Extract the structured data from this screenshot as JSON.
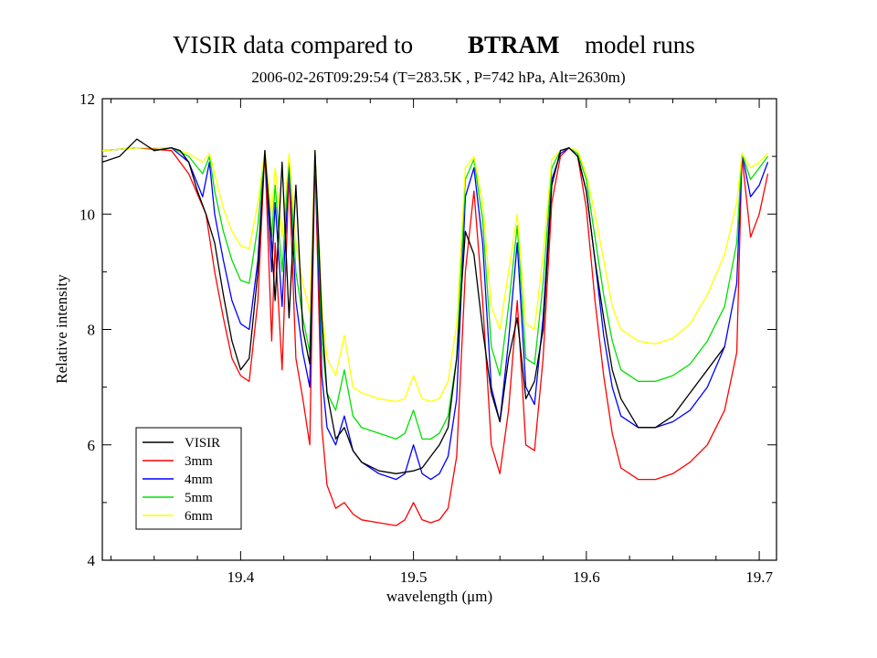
{
  "chart_data": {
    "type": "line",
    "title_prefix": "VISIR data compared to",
    "title_highlight": "BTRAM",
    "title_suffix": "model runs",
    "subtitle": "2006-02-26T09:29:54 (T=283.5K , P=742 hPa, Alt=2630m)",
    "xlabel": "wavelength (μm)",
    "ylabel": "Relative intensity",
    "xlim": [
      19.32,
      19.71
    ],
    "ylim": [
      4,
      12
    ],
    "xticks": [
      19.4,
      19.5,
      19.6,
      19.7
    ],
    "yticks": [
      4,
      6,
      8,
      10,
      12
    ],
    "grid": false,
    "legend_position": "bottom-left",
    "colors": {
      "title_highlight": "#555555",
      "axis": "#000000"
    },
    "series": [
      {
        "name": "VISIR",
        "color": "#000000",
        "x": [
          19.32,
          19.33,
          19.34,
          19.345,
          19.35,
          19.36,
          19.365,
          19.37,
          19.375,
          19.38,
          19.385,
          19.39,
          19.395,
          19.4,
          19.405,
          19.41,
          19.414,
          19.418,
          19.42,
          19.424,
          19.428,
          19.432,
          19.436,
          19.44,
          19.443,
          19.447,
          19.45,
          19.455,
          19.46,
          19.465,
          19.47,
          19.48,
          19.49,
          19.5,
          19.505,
          19.51,
          19.515,
          19.52,
          19.525,
          19.53,
          19.535,
          19.54,
          19.545,
          19.55,
          19.555,
          19.56,
          19.565,
          19.57,
          19.575,
          19.58,
          19.585,
          19.59,
          19.595,
          19.6,
          19.605,
          19.61,
          19.615,
          19.62,
          19.63,
          19.64,
          19.65,
          19.66,
          19.67,
          19.68
        ],
        "y": [
          10.9,
          11.0,
          11.3,
          11.2,
          11.1,
          11.15,
          11.1,
          10.9,
          10.4,
          10.0,
          9.5,
          8.6,
          7.8,
          7.3,
          7.5,
          9.0,
          11.1,
          9.5,
          8.5,
          10.9,
          8.2,
          10.5,
          8.0,
          7.4,
          11.1,
          8.2,
          6.9,
          6.1,
          6.3,
          5.9,
          5.7,
          5.55,
          5.5,
          5.55,
          5.6,
          5.8,
          6.0,
          6.3,
          7.5,
          9.7,
          9.3,
          8.0,
          6.9,
          6.4,
          7.5,
          8.2,
          6.8,
          7.1,
          8.0,
          10.5,
          11.1,
          11.15,
          11.0,
          10.4,
          9.2,
          8.2,
          7.3,
          6.8,
          6.3,
          6.3,
          6.5,
          6.9,
          7.3,
          7.7
        ]
      },
      {
        "name": "3mm",
        "color": "#ff0000",
        "x": [
          19.32,
          19.34,
          19.36,
          19.37,
          19.38,
          19.385,
          19.39,
          19.395,
          19.4,
          19.405,
          19.41,
          19.414,
          19.418,
          19.42,
          19.424,
          19.428,
          19.432,
          19.436,
          19.44,
          19.443,
          19.447,
          19.45,
          19.455,
          19.46,
          19.465,
          19.47,
          19.48,
          19.49,
          19.495,
          19.5,
          19.505,
          19.51,
          19.515,
          19.52,
          19.525,
          19.53,
          19.535,
          19.54,
          19.545,
          19.55,
          19.555,
          19.56,
          19.565,
          19.57,
          19.575,
          19.58,
          19.585,
          19.59,
          19.595,
          19.6,
          19.605,
          19.61,
          19.615,
          19.62,
          19.63,
          19.64,
          19.65,
          19.66,
          19.67,
          19.68,
          19.687,
          19.69,
          19.695,
          19.7,
          19.705
        ],
        "y": [
          11.1,
          11.15,
          11.1,
          10.7,
          10.0,
          9.0,
          8.2,
          7.5,
          7.2,
          7.1,
          8.5,
          11.1,
          7.8,
          9.5,
          7.3,
          10.7,
          7.5,
          6.8,
          6.0,
          11.0,
          6.3,
          5.3,
          4.9,
          5.0,
          4.8,
          4.7,
          4.65,
          4.6,
          4.7,
          5.0,
          4.7,
          4.65,
          4.7,
          4.9,
          5.8,
          9.0,
          10.4,
          8.5,
          6.0,
          5.5,
          6.6,
          8.5,
          6.0,
          5.9,
          7.5,
          10.2,
          11.0,
          11.15,
          11.0,
          10.1,
          8.5,
          7.2,
          6.2,
          5.6,
          5.4,
          5.4,
          5.5,
          5.7,
          6.0,
          6.6,
          7.6,
          11.0,
          9.6,
          10.0,
          10.7
        ]
      },
      {
        "name": "4mm",
        "color": "#0000ff",
        "x": [
          19.32,
          19.34,
          19.36,
          19.37,
          19.378,
          19.382,
          19.385,
          19.39,
          19.395,
          19.4,
          19.405,
          19.41,
          19.414,
          19.418,
          19.42,
          19.424,
          19.428,
          19.432,
          19.436,
          19.44,
          19.443,
          19.447,
          19.45,
          19.455,
          19.46,
          19.465,
          19.47,
          19.48,
          19.49,
          19.495,
          19.5,
          19.505,
          19.51,
          19.515,
          19.52,
          19.525,
          19.53,
          19.535,
          19.54,
          19.545,
          19.55,
          19.555,
          19.56,
          19.565,
          19.57,
          19.575,
          19.58,
          19.585,
          19.59,
          19.595,
          19.6,
          19.605,
          19.61,
          19.615,
          19.62,
          19.63,
          19.64,
          19.65,
          19.66,
          19.67,
          19.68,
          19.687,
          19.69,
          19.695,
          19.7,
          19.705
        ],
        "y": [
          11.1,
          11.15,
          11.15,
          10.9,
          10.3,
          10.9,
          10.0,
          9.2,
          8.5,
          8.1,
          8.0,
          9.2,
          11.1,
          9.0,
          10.2,
          8.4,
          10.9,
          8.5,
          7.6,
          7.0,
          11.05,
          7.2,
          6.3,
          6.0,
          6.5,
          5.9,
          5.7,
          5.5,
          5.4,
          5.5,
          6.0,
          5.5,
          5.4,
          5.5,
          5.8,
          6.8,
          10.3,
          10.8,
          9.5,
          7.0,
          6.4,
          7.8,
          9.5,
          7.0,
          6.7,
          8.2,
          10.6,
          11.05,
          11.15,
          11.0,
          10.4,
          9.2,
          7.9,
          7.0,
          6.5,
          6.3,
          6.3,
          6.4,
          6.6,
          7.0,
          7.7,
          8.8,
          11.05,
          10.3,
          10.5,
          10.9
        ]
      },
      {
        "name": "5mm",
        "color": "#00e000",
        "x": [
          19.32,
          19.34,
          19.36,
          19.37,
          19.378,
          19.382,
          19.385,
          19.39,
          19.395,
          19.4,
          19.405,
          19.41,
          19.414,
          19.418,
          19.42,
          19.424,
          19.428,
          19.432,
          19.436,
          19.44,
          19.443,
          19.447,
          19.45,
          19.455,
          19.46,
          19.465,
          19.47,
          19.48,
          19.49,
          19.495,
          19.5,
          19.505,
          19.51,
          19.515,
          19.52,
          19.525,
          19.53,
          19.535,
          19.54,
          19.545,
          19.55,
          19.555,
          19.56,
          19.565,
          19.57,
          19.575,
          19.58,
          19.585,
          19.59,
          19.595,
          19.6,
          19.605,
          19.61,
          19.615,
          19.62,
          19.63,
          19.64,
          19.65,
          19.66,
          19.67,
          19.68,
          19.687,
          19.69,
          19.695,
          19.7,
          19.705
        ],
        "y": [
          11.1,
          11.15,
          11.15,
          11.0,
          10.7,
          11.0,
          10.4,
          9.7,
          9.2,
          8.85,
          8.8,
          9.8,
          11.1,
          9.6,
          10.5,
          9.0,
          11.0,
          9.0,
          8.2,
          7.6,
          11.1,
          7.8,
          6.9,
          6.6,
          7.3,
          6.5,
          6.3,
          6.2,
          6.1,
          6.2,
          6.6,
          6.1,
          6.1,
          6.2,
          6.5,
          7.5,
          10.6,
          10.95,
          9.9,
          7.7,
          7.2,
          8.4,
          9.8,
          7.5,
          7.4,
          8.8,
          10.8,
          11.1,
          11.15,
          11.05,
          10.6,
          9.6,
          8.6,
          7.8,
          7.3,
          7.1,
          7.1,
          7.2,
          7.4,
          7.8,
          8.4,
          9.5,
          11.05,
          10.6,
          10.8,
          11.0
        ]
      },
      {
        "name": "6mm",
        "color": "#ffff00",
        "x": [
          19.32,
          19.34,
          19.36,
          19.37,
          19.378,
          19.382,
          19.385,
          19.39,
          19.395,
          19.4,
          19.405,
          19.41,
          19.414,
          19.418,
          19.42,
          19.424,
          19.428,
          19.432,
          19.436,
          19.44,
          19.443,
          19.447,
          19.45,
          19.455,
          19.46,
          19.465,
          19.47,
          19.48,
          19.49,
          19.495,
          19.5,
          19.505,
          19.51,
          19.515,
          19.52,
          19.525,
          19.53,
          19.535,
          19.54,
          19.545,
          19.55,
          19.555,
          19.56,
          19.565,
          19.57,
          19.575,
          19.58,
          19.585,
          19.59,
          19.595,
          19.6,
          19.605,
          19.61,
          19.615,
          19.62,
          19.63,
          19.64,
          19.65,
          19.66,
          19.67,
          19.68,
          19.687,
          19.69,
          19.695,
          19.7,
          19.705
        ],
        "y": [
          11.1,
          11.15,
          11.15,
          11.05,
          10.9,
          11.05,
          10.7,
          10.1,
          9.7,
          9.45,
          9.4,
          10.2,
          11.1,
          10.0,
          10.8,
          9.6,
          11.05,
          9.5,
          8.8,
          8.3,
          11.1,
          8.4,
          7.5,
          7.2,
          7.9,
          7.0,
          6.9,
          6.8,
          6.75,
          6.8,
          7.2,
          6.8,
          6.75,
          6.8,
          7.1,
          8.1,
          10.8,
          11.0,
          10.2,
          8.4,
          8.0,
          9.0,
          10.0,
          8.1,
          8.0,
          9.3,
          10.95,
          11.1,
          11.15,
          11.1,
          10.7,
          10.0,
          9.2,
          8.4,
          8.0,
          7.8,
          7.75,
          7.85,
          8.1,
          8.6,
          9.3,
          10.2,
          11.05,
          10.8,
          10.9,
          11.05
        ]
      }
    ]
  }
}
